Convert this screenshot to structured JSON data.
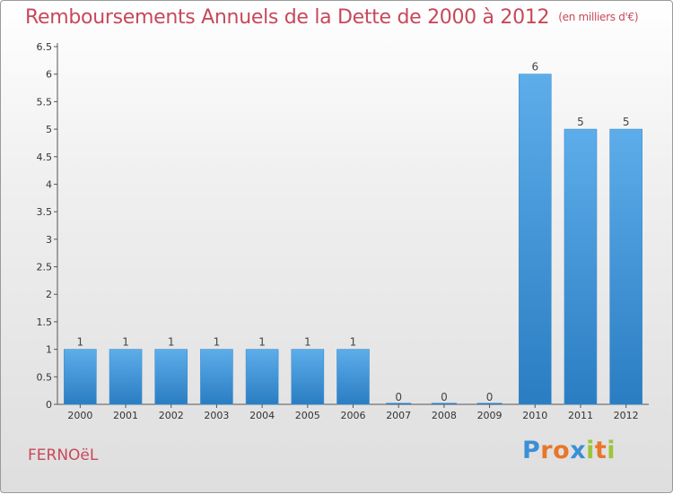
{
  "title": "Remboursements Annuels de la Dette de 2000 à 2012",
  "subtitle": "(en milliers d'€)",
  "commune": "FERNOëL",
  "logo": {
    "text": "Proxiti",
    "letters": [
      {
        "ch": "P",
        "color": "#3a8fd6"
      },
      {
        "ch": "r",
        "color": "#e8762c"
      },
      {
        "ch": "o",
        "color": "#e8762c"
      },
      {
        "ch": "x",
        "color": "#3a8fd6"
      },
      {
        "ch": "i",
        "color": "#9bc53d"
      },
      {
        "ch": "t",
        "color": "#e8762c"
      },
      {
        "ch": "i",
        "color": "#9bc53d"
      }
    ]
  },
  "colors": {
    "bar_top": "#5dadea",
    "bar_bottom": "#2a7dc2",
    "title": "#c8485a"
  },
  "chart_data": {
    "type": "bar",
    "title": "Remboursements Annuels de la Dette de 2000 à 2012",
    "subtitle": "(en milliers d'€)",
    "categories": [
      "2000",
      "2001",
      "2002",
      "2003",
      "2004",
      "2005",
      "2006",
      "2007",
      "2008",
      "2009",
      "2010",
      "2011",
      "2012"
    ],
    "values": [
      1,
      1,
      1,
      1,
      1,
      1,
      1,
      0,
      0,
      0,
      6,
      5,
      5
    ],
    "data_labels": [
      "1",
      "1",
      "1",
      "1",
      "1",
      "1",
      "1",
      "0",
      "0",
      "0",
      "6",
      "5",
      "5"
    ],
    "ylim": [
      0,
      6.5
    ],
    "yticks": [
      0,
      0.5,
      1,
      1.5,
      2,
      2.5,
      3,
      3.5,
      4,
      4.5,
      5,
      5.5,
      6,
      6.5
    ],
    "ytick_labels": [
      "0",
      "0.5",
      "1",
      "1.5",
      "2",
      "2.5",
      "3",
      "3.5",
      "4",
      "4.5",
      "5",
      "5.5",
      "6",
      "6.5"
    ],
    "xlabel": "",
    "ylabel": "",
    "grid": false
  }
}
